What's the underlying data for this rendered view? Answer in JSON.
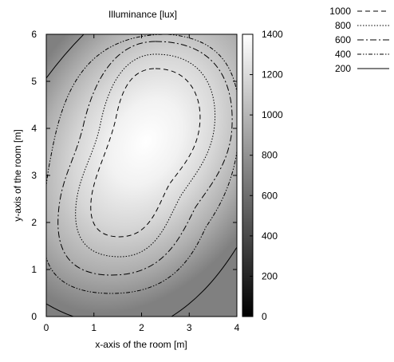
{
  "chart_data": {
    "type": "heatmap",
    "title": "Illuminance [lux]",
    "xlabel": "x-axis of the room [m]",
    "ylabel": "y-axis of the room [m]",
    "xlim": [
      0,
      4
    ],
    "ylim": [
      0,
      6
    ],
    "x_ticks": [
      "0",
      "1",
      "2",
      "3",
      "4"
    ],
    "y_ticks": [
      "0",
      "1",
      "2",
      "3",
      "4",
      "5",
      "6"
    ],
    "colorbar": {
      "range": [
        0,
        1400
      ],
      "ticks": [
        "0",
        "200",
        "400",
        "600",
        "800",
        "1000",
        "1200",
        "1400"
      ],
      "colormap": "grayscale (black = 0, white = 1400)"
    },
    "peak": {
      "x": 2.2,
      "y": 3.6,
      "value": 1400
    },
    "contour_levels": [
      {
        "value": 1000,
        "label": "1000",
        "dash": "6,4"
      },
      {
        "value": 800,
        "label": "800",
        "dash": "1.5,2"
      },
      {
        "value": 600,
        "label": "600",
        "dash": "8,3,2,3"
      },
      {
        "value": 400,
        "label": "400",
        "dash": "5,2,1.5,2,1.5,2"
      },
      {
        "value": 200,
        "label": "200",
        "dash": ""
      }
    ],
    "legend_position": "top-right, outside plot",
    "grid": false
  }
}
